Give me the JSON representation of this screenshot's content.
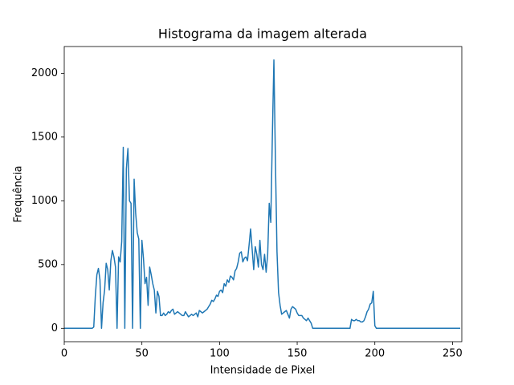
{
  "chart_data": {
    "type": "line",
    "title": "Histograma da imagem alterada",
    "x_label": "Intensidade de Pixel",
    "y_label": "Frequência",
    "x": [
      0,
      1,
      2,
      3,
      4,
      5,
      6,
      7,
      8,
      9,
      10,
      11,
      12,
      13,
      14,
      15,
      16,
      17,
      18,
      19,
      20,
      21,
      22,
      23,
      24,
      25,
      26,
      27,
      28,
      29,
      30,
      31,
      32,
      33,
      34,
      35,
      36,
      37,
      38,
      39,
      40,
      41,
      42,
      43,
      44,
      45,
      46,
      47,
      48,
      49,
      50,
      51,
      52,
      53,
      54,
      55,
      56,
      57,
      58,
      59,
      60,
      61,
      62,
      63,
      64,
      65,
      66,
      67,
      68,
      69,
      70,
      71,
      72,
      73,
      74,
      75,
      76,
      77,
      78,
      79,
      80,
      81,
      82,
      83,
      84,
      85,
      86,
      87,
      88,
      89,
      90,
      91,
      92,
      93,
      94,
      95,
      96,
      97,
      98,
      99,
      100,
      101,
      102,
      103,
      104,
      105,
      106,
      107,
      108,
      109,
      110,
      111,
      112,
      113,
      114,
      115,
      116,
      117,
      118,
      119,
      120,
      121,
      122,
      123,
      124,
      125,
      126,
      127,
      128,
      129,
      130,
      131,
      132,
      133,
      134,
      135,
      136,
      137,
      138,
      139,
      140,
      141,
      142,
      143,
      144,
      145,
      146,
      147,
      148,
      149,
      150,
      151,
      152,
      153,
      154,
      155,
      156,
      157,
      158,
      159,
      160,
      161,
      162,
      163,
      164,
      165,
      166,
      167,
      168,
      169,
      170,
      171,
      172,
      173,
      174,
      175,
      176,
      177,
      178,
      179,
      180,
      181,
      182,
      183,
      184,
      185,
      186,
      187,
      188,
      189,
      190,
      191,
      192,
      193,
      194,
      195,
      196,
      197,
      198,
      199,
      200,
      201,
      202,
      203,
      204,
      205,
      206,
      207,
      208,
      209,
      210,
      211,
      212,
      213,
      214,
      215,
      216,
      217,
      218,
      219,
      220,
      221,
      222,
      223,
      224,
      225,
      226,
      227,
      228,
      229,
      230,
      231,
      232,
      233,
      234,
      235,
      236,
      237,
      238,
      239,
      240,
      241,
      242,
      243,
      244,
      245,
      246,
      247,
      248,
      249,
      250,
      251,
      252,
      253,
      254,
      255
    ],
    "series": [
      {
        "color": "#1f77b4",
        "values": [
          0,
          0,
          0,
          0,
          0,
          0,
          0,
          0,
          0,
          0,
          0,
          0,
          0,
          0,
          0,
          0,
          0,
          0,
          0,
          10,
          250,
          420,
          470,
          380,
          0,
          200,
          300,
          510,
          460,
          300,
          530,
          610,
          560,
          480,
          0,
          560,
          520,
          680,
          1420,
          0,
          1250,
          1410,
          1000,
          980,
          0,
          1170,
          900,
          750,
          700,
          0,
          690,
          550,
          350,
          400,
          180,
          480,
          420,
          350,
          300,
          120,
          290,
          250,
          100,
          100,
          120,
          100,
          110,
          130,
          120,
          140,
          150,
          110,
          120,
          130,
          120,
          110,
          100,
          100,
          130,
          110,
          90,
          100,
          110,
          100,
          110,
          120,
          90,
          140,
          130,
          120,
          130,
          140,
          150,
          170,
          190,
          220,
          210,
          230,
          260,
          250,
          290,
          300,
          280,
          350,
          330,
          380,
          360,
          410,
          400,
          380,
          450,
          470,
          520,
          590,
          600,
          520,
          550,
          560,
          530,
          650,
          780,
          620,
          460,
          640,
          580,
          480,
          690,
          500,
          460,
          580,
          440,
          580,
          980,
          830,
          1500,
          2105,
          1300,
          600,
          280,
          180,
          110,
          120,
          130,
          140,
          110,
          80,
          150,
          170,
          160,
          150,
          120,
          100,
          100,
          100,
          80,
          70,
          60,
          80,
          60,
          40,
          0,
          0,
          0,
          0,
          0,
          0,
          0,
          0,
          0,
          0,
          0,
          0,
          0,
          0,
          0,
          0,
          0,
          0,
          0,
          0,
          0,
          0,
          0,
          0,
          0,
          70,
          60,
          60,
          70,
          60,
          60,
          50,
          50,
          60,
          90,
          130,
          150,
          190,
          200,
          290,
          20,
          0,
          0,
          0,
          0,
          0,
          0,
          0,
          0,
          0,
          0,
          0,
          0,
          0,
          0,
          0,
          0,
          0,
          0,
          0,
          0,
          0,
          0,
          0,
          0,
          0,
          0,
          0,
          0,
          0,
          0,
          0,
          0,
          0,
          0,
          0,
          0,
          0,
          0,
          0,
          0,
          0,
          0,
          0,
          0,
          0,
          0,
          0,
          0,
          0,
          0,
          0,
          0,
          0,
          0,
          0
        ]
      }
    ],
    "xlim": [
      0,
      256
    ],
    "ylim": [
      -105,
      2210
    ],
    "xticks": [
      0,
      50,
      100,
      150,
      200,
      250
    ],
    "yticks": [
      0,
      500,
      1000,
      1500,
      2000
    ]
  }
}
